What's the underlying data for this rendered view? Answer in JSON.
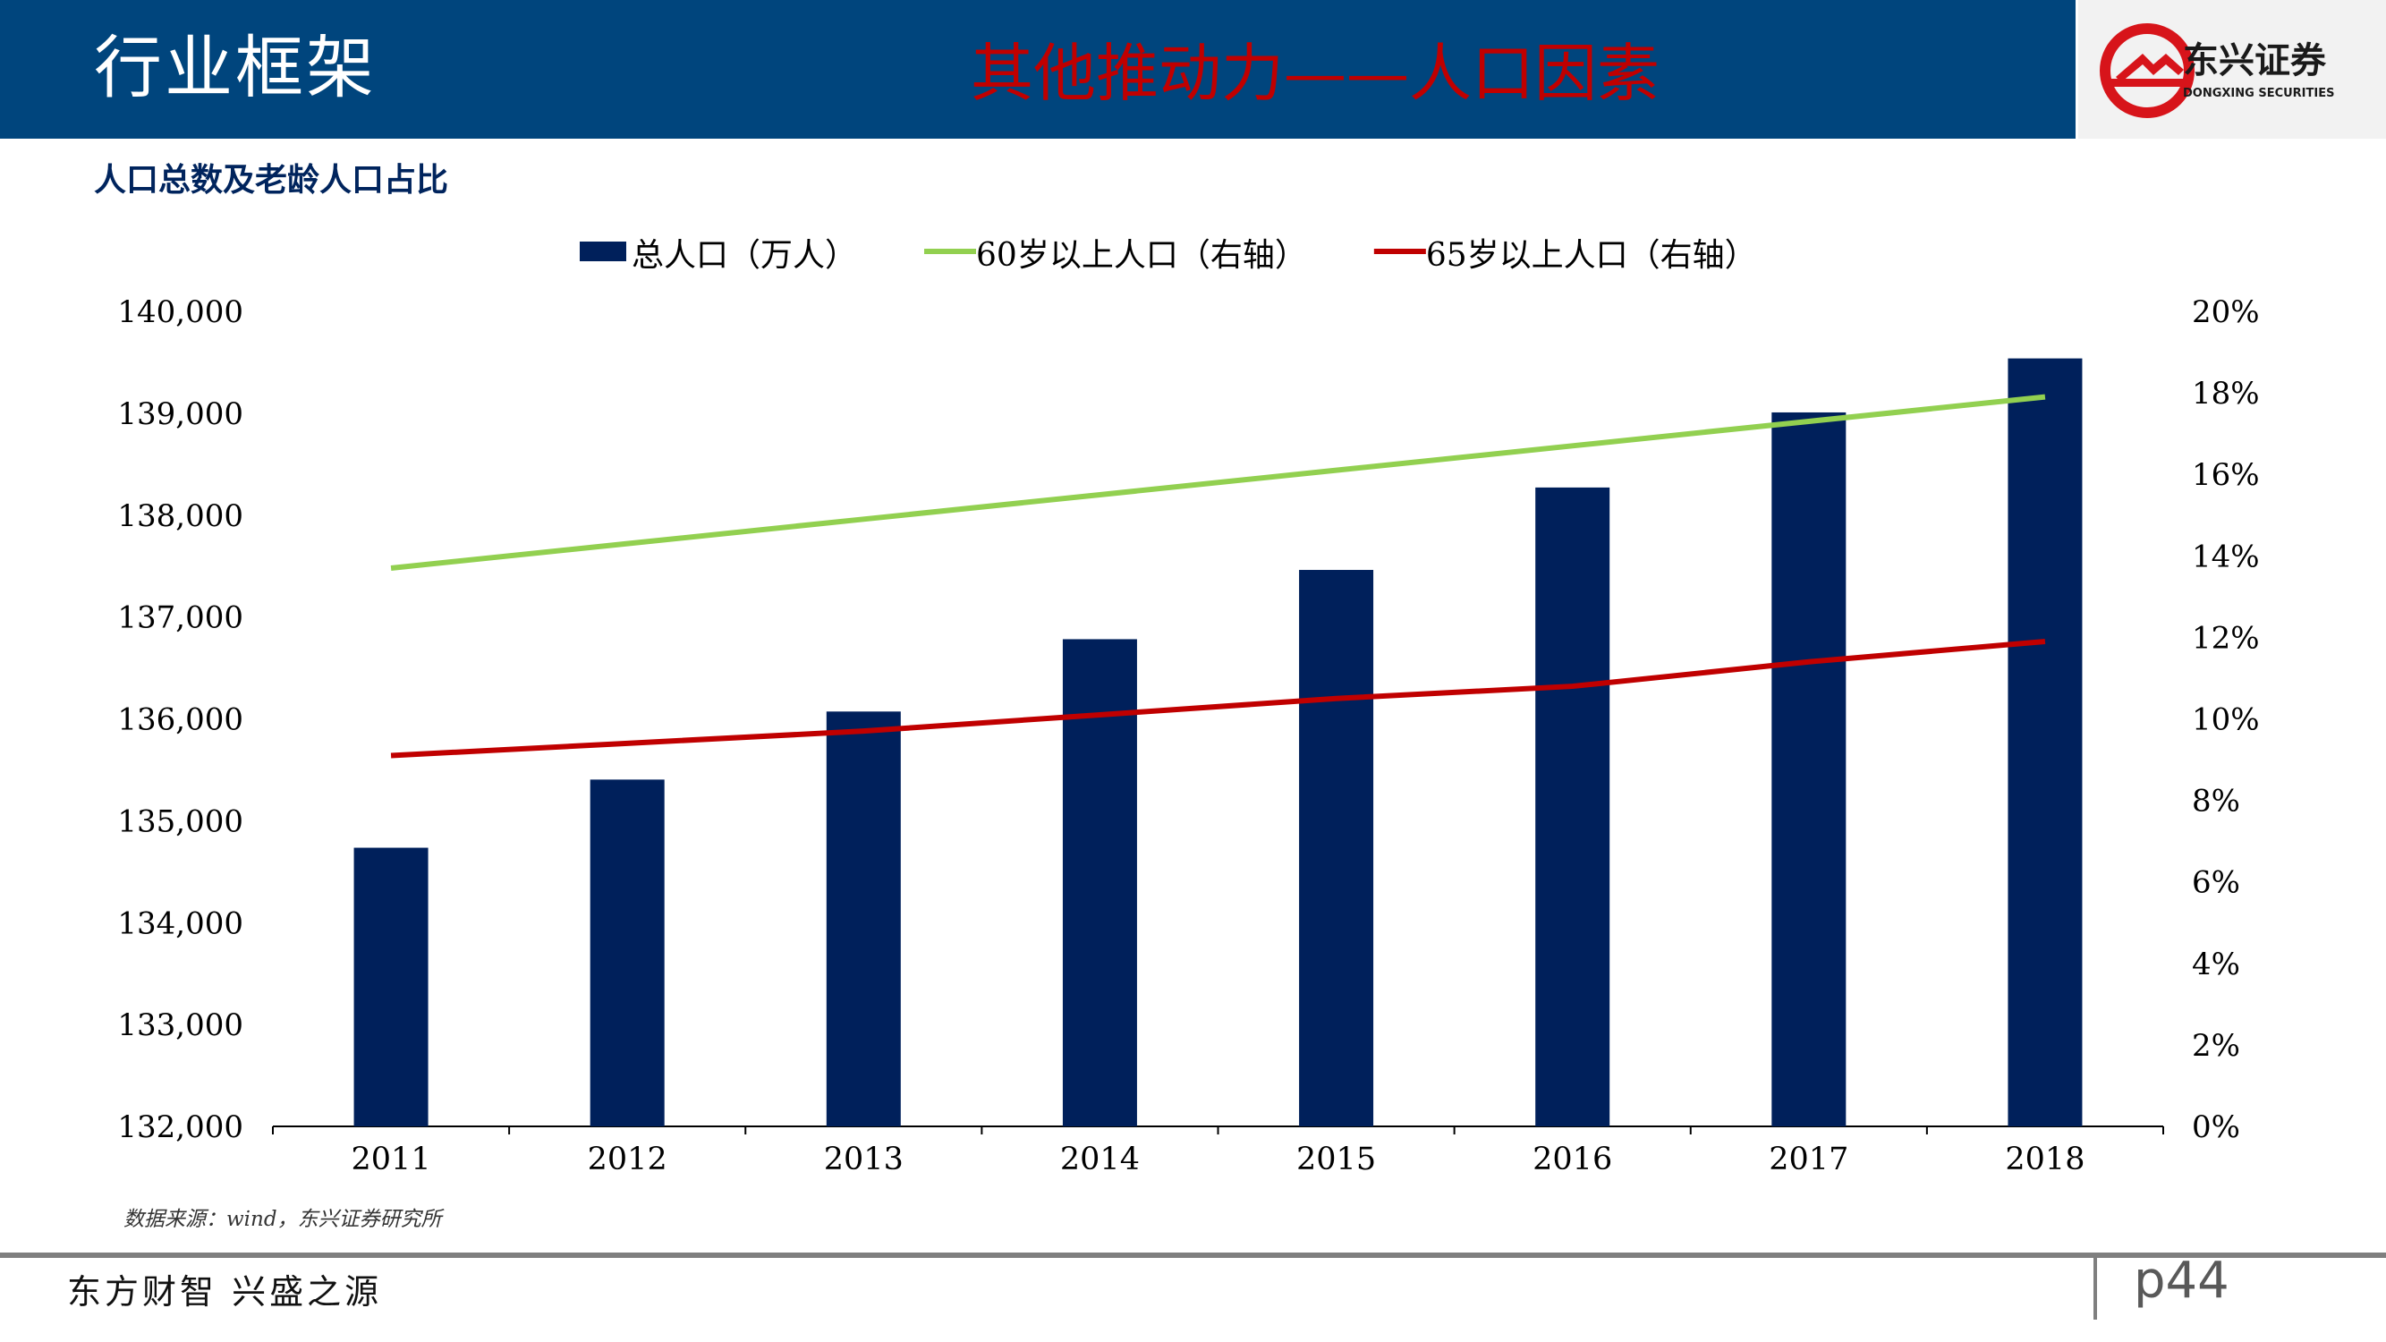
{
  "header": {
    "section_title": "行业框架",
    "slide_title": "其他推动力——人口因素"
  },
  "logo": {
    "name": "东兴证券",
    "name_en": "DONGXING SECURITIES",
    "colors": {
      "red": "#d7141a",
      "dark": "#1a1a1a"
    }
  },
  "chart_title": "人口总数及老龄人口占比",
  "chart_data": {
    "type": "bar",
    "categories": [
      "2011",
      "2012",
      "2013",
      "2014",
      "2015",
      "2016",
      "2017",
      "2018"
    ],
    "series": [
      {
        "name": "总人口（万人）",
        "type": "bar",
        "axis": "left",
        "color": "#00205b",
        "values": [
          134735,
          135404,
          136072,
          136782,
          137462,
          138271,
          139008,
          139538
        ]
      },
      {
        "name": "60岁以上人口（右轴）",
        "type": "line",
        "axis": "right",
        "color": "#92d050",
        "values": [
          13.7,
          14.3,
          14.9,
          15.5,
          16.1,
          16.7,
          17.3,
          17.9
        ]
      },
      {
        "name": "65岁以上人口（右轴）",
        "type": "line",
        "axis": "right",
        "color": "#c00000",
        "values": [
          9.1,
          9.4,
          9.7,
          10.1,
          10.5,
          10.8,
          11.4,
          11.9
        ]
      }
    ],
    "left_axis": {
      "ylim": [
        132000,
        140000
      ],
      "ticks": [
        132000,
        133000,
        134000,
        135000,
        136000,
        137000,
        138000,
        139000,
        140000
      ],
      "tick_labels": [
        "132,000",
        "133,000",
        "134,000",
        "135,000",
        "136,000",
        "137,000",
        "138,000",
        "139,000",
        "140,000"
      ]
    },
    "right_axis": {
      "ylim": [
        0,
        20
      ],
      "ticks": [
        0,
        2,
        4,
        6,
        8,
        10,
        12,
        14,
        16,
        18,
        20
      ],
      "tick_labels": [
        "0%",
        "2%",
        "4%",
        "6%",
        "8%",
        "10%",
        "12%",
        "14%",
        "16%",
        "18%",
        "20%"
      ]
    },
    "grid": false,
    "legend_position": "top-center"
  },
  "source": "数据来源：wind，东兴证券研究所",
  "footer": {
    "slogan": "东方财智 兴盛之源",
    "page": "p44"
  }
}
